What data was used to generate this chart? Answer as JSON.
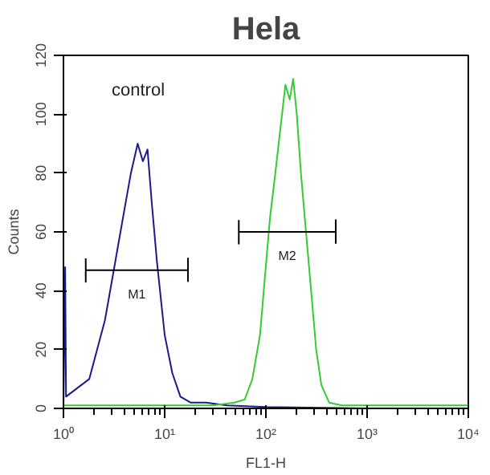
{
  "chart_data": {
    "type": "line",
    "title": "Hela",
    "xlabel": "FL1-H",
    "ylabel": "Counts",
    "log": "x",
    "grid": false,
    "marker": "none",
    "line_style": "solid",
    "xlim": [
      1,
      10000
    ],
    "ylim": [
      0,
      120
    ],
    "xticks": [
      {
        "value": 1,
        "label": "10⁰"
      },
      {
        "value": 10,
        "label": "10¹"
      },
      {
        "value": 100,
        "label": "10²"
      },
      {
        "value": 1000,
        "label": "10³"
      },
      {
        "value": 10000,
        "label": "10⁴"
      }
    ],
    "yticks": [
      0,
      20,
      40,
      60,
      80,
      100,
      120
    ],
    "series": [
      {
        "color": "#1a1a8c",
        "x": [
          1.0,
          1.04,
          1.06,
          1.51,
          1.8,
          2.15,
          2.57,
          3.07,
          3.66,
          4.12,
          4.64,
          5.41,
          6.09,
          6.77,
          7.45,
          8.38,
          10,
          11.9,
          14.3,
          18,
          25.7,
          41,
          100,
          1000,
          10000
        ],
        "values": [
          0,
          48,
          4,
          8,
          10,
          20,
          30,
          45,
          60,
          70,
          80,
          90,
          84,
          88,
          70,
          50,
          25,
          12,
          4,
          2,
          2,
          1,
          0.5,
          0,
          0
        ]
      },
      {
        "color": "#33cc33",
        "x": [
          1,
          10,
          30,
          48.9,
          61.7,
          73.5,
          87.5,
          98,
          110,
          124,
          139,
          156,
          172,
          186,
          202,
          222,
          249,
          280,
          314,
          353,
          421,
          562,
          1000,
          10000
        ],
        "values": [
          1,
          1,
          1,
          2,
          3,
          10,
          25,
          45,
          65,
          80,
          95,
          110,
          105,
          112,
          100,
          80,
          60,
          40,
          20,
          8,
          2,
          1,
          1,
          1
        ]
      },
      {
        "name": "M1",
        "color": "#000000",
        "x": [
          1.66,
          1.66,
          1.66,
          17,
          17,
          17
        ],
        "values": [
          51,
          43,
          47,
          47,
          51,
          43
        ]
      },
      {
        "name": "M2",
        "color": "#000000",
        "x": [
          54,
          54,
          54,
          490,
          490,
          490
        ],
        "values": [
          64,
          56,
          60,
          60,
          64,
          56
        ]
      }
    ],
    "annotations": [
      "control"
    ]
  }
}
